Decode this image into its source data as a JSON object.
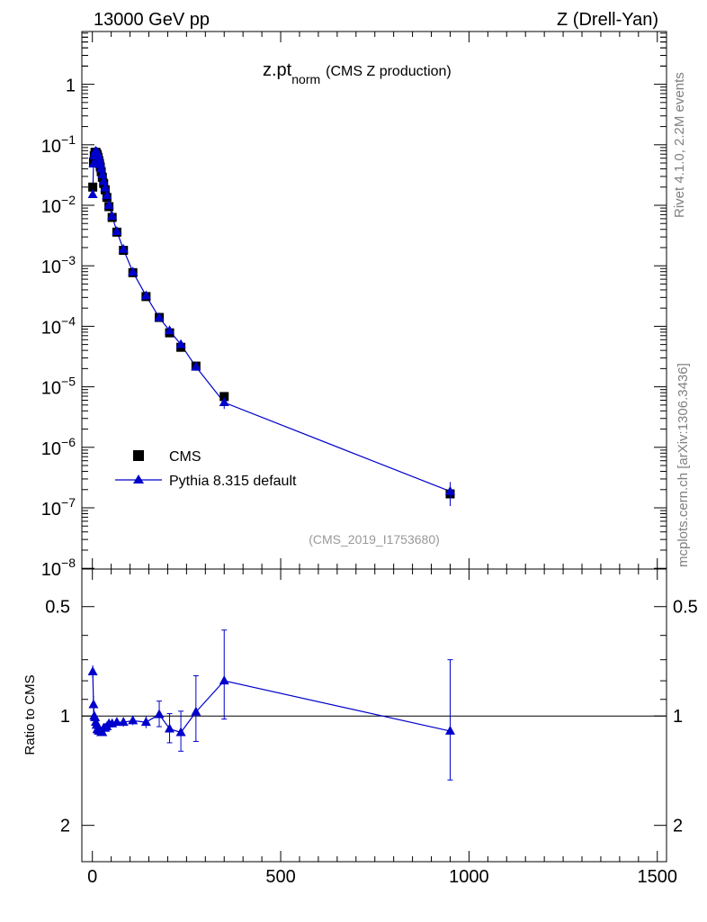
{
  "header": {
    "left": "13000 GeV pp",
    "right": "Z (Drell-Yan)"
  },
  "side": {
    "rivet": "Rivet 4.1.0,  2.2M events",
    "mcplots": "mcplots.cern.ch [arXiv:1306.3436]"
  },
  "colors": {
    "data": "#000000",
    "mc": "#0000cc",
    "watermark": "#999999",
    "side_text": "#808080"
  },
  "chart_data": [
    {
      "type": "scatter",
      "title_main": "z.pt",
      "title_sub": "norm",
      "title_suffix": "(CMS Z production)",
      "watermark": "(CMS_2019_I1753680)",
      "yscale": "log",
      "xlim": [
        -25,
        1525
      ],
      "ylim": [
        1e-08,
        6
      ],
      "ytick_labels": [
        {
          "value": 1e-08,
          "label": "10",
          "exp": "−8"
        },
        {
          "value": 1e-07,
          "label": "10",
          "exp": "−7"
        },
        {
          "value": 1e-06,
          "label": "10",
          "exp": "−6"
        },
        {
          "value": 1e-05,
          "label": "10",
          "exp": "−5"
        },
        {
          "value": 0.0001,
          "label": "10",
          "exp": "−4"
        },
        {
          "value": 0.001,
          "label": "10",
          "exp": "−3"
        },
        {
          "value": 0.01,
          "label": "10",
          "exp": "−2"
        },
        {
          "value": 0.1,
          "label": "10",
          "exp": "−1"
        },
        {
          "value": 1,
          "label": "1",
          "exp": ""
        }
      ],
      "legend": [
        {
          "name": "CMS",
          "marker": "square"
        },
        {
          "name": "Pythia 8.315 default",
          "marker": "triangle"
        }
      ],
      "legend_position": "bottom-left",
      "series": [
        {
          "name": "CMS",
          "x": [
            1,
            3,
            5,
            7,
            9,
            11,
            13,
            15,
            17,
            19,
            21,
            23.5,
            26.5,
            30,
            34,
            38.5,
            44,
            52.5,
            65,
            82.5,
            107.5,
            142.5,
            177.5,
            205,
            235,
            275,
            350,
            950
          ],
          "y": [
            0.02,
            0.052,
            0.066,
            0.075,
            0.075,
            0.072,
            0.068,
            0.062,
            0.055,
            0.049,
            0.043,
            0.036,
            0.029,
            0.023,
            0.018,
            0.0135,
            0.0095,
            0.0063,
            0.0036,
            0.0018,
            0.00077,
            0.00031,
            0.00014,
            7.8e-05,
            4.5e-05,
            2.2e-05,
            6.9e-06,
            1.7e-07
          ]
        },
        {
          "name": "Pythia 8.315 default",
          "x": [
            1,
            3,
            5,
            7,
            9,
            11,
            13,
            15,
            17,
            19,
            21,
            23.5,
            26.5,
            30,
            34,
            38.5,
            44,
            52.5,
            65,
            82.5,
            107.5,
            142.5,
            177.5,
            205,
            235,
            275,
            350,
            950
          ],
          "y": [
            0.0151,
            0.0484,
            0.066,
            0.0758,
            0.078,
            0.0763,
            0.0741,
            0.0676,
            0.0605,
            0.0534,
            0.0473,
            0.04,
            0.0322,
            0.0248,
            0.0194,
            0.0145,
            0.01,
            0.0066,
            0.0037,
            0.00187,
            0.00079,
            0.00032,
            0.000139,
            8.46e-05,
            5e-05,
            2.14e-05,
            5.5e-06,
            1.87e-07
          ],
          "yerr": [
            0.0003,
            0.0005,
            0.0006,
            0.0007,
            0.0007,
            0.0007,
            0.0007,
            0.0007,
            0.0006,
            0.0006,
            0.0005,
            0.0005,
            0.0004,
            0.0003,
            0.0003,
            0.0002,
            0.0002,
            0.0001,
            7e-05,
            4e-05,
            2e-05,
            1e-05,
            7e-06,
            6e-06,
            6e-06,
            3e-06,
            1.2e-06,
            8e-08
          ]
        }
      ]
    },
    {
      "type": "scatter",
      "ylabel": "Ratio to CMS",
      "xlim": [
        -25,
        1525
      ],
      "ylim": [
        0.4,
        2.3
      ],
      "ytick_labels": [
        "0.5",
        "1",
        "2"
      ],
      "ytick_values": [
        0.5,
        1,
        2
      ],
      "xtick_labels": [
        "0",
        "500",
        "1000",
        "1500"
      ],
      "xtick_values": [
        0,
        500,
        1000,
        1500
      ],
      "reference_line": 1,
      "series": [
        {
          "name": "Pythia 8.315 default / CMS",
          "x": [
            1,
            3,
            5,
            7,
            9,
            11,
            13,
            15,
            17,
            19,
            21,
            23.5,
            26.5,
            30,
            34,
            38.5,
            44,
            52.5,
            65,
            82.5,
            107.5,
            142.5,
            177.5,
            205,
            235,
            275,
            350,
            950
          ],
          "y": [
            0.755,
            0.93,
            1.0,
            1.01,
            1.04,
            1.06,
            1.09,
            1.09,
            1.1,
            1.09,
            1.1,
            1.11,
            1.11,
            1.08,
            1.08,
            1.07,
            1.05,
            1.05,
            1.04,
            1.04,
            1.03,
            1.04,
            0.99,
            1.085,
            1.11,
            0.975,
            0.8,
            1.1
          ],
          "yerr": [
            0.03,
            0.05,
            0.02,
            0.02,
            0.02,
            0.02,
            0.02,
            0.02,
            0.02,
            0.02,
            0.02,
            0.02,
            0.02,
            0.02,
            0.02,
            0.02,
            0.02,
            0.02,
            0.02,
            0.03,
            0.03,
            0.04,
            0.08,
            0.1,
            0.14,
            0.2,
            0.22,
            0.4
          ]
        }
      ]
    }
  ]
}
